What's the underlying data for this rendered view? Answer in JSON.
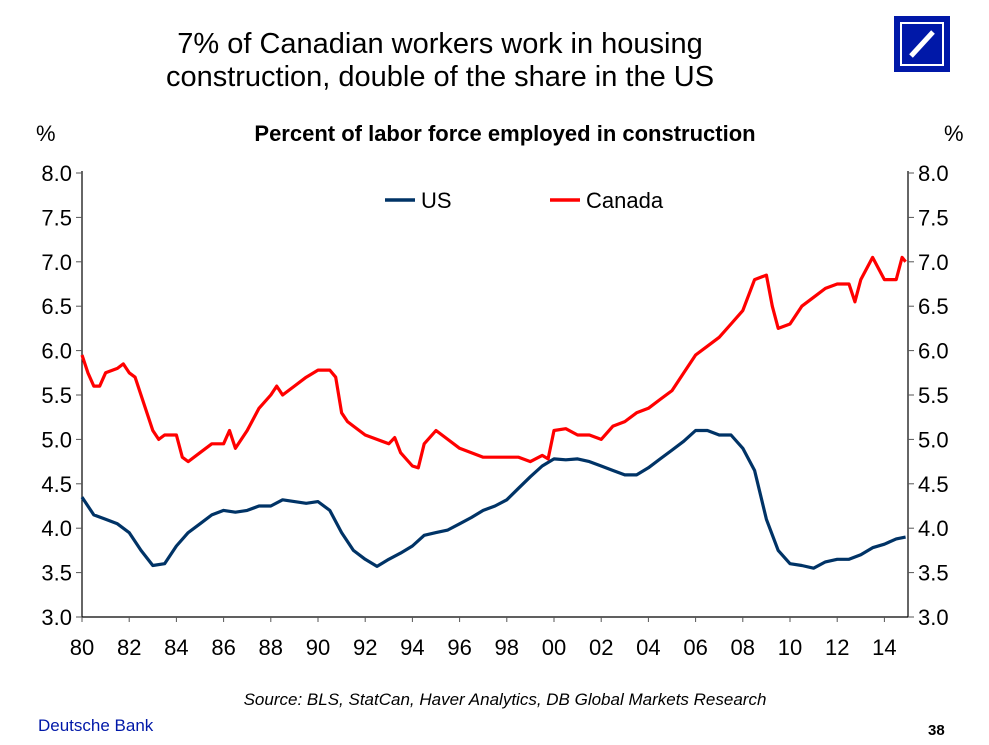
{
  "title_line1": "7% of Canadian workers work in housing",
  "title_line2": "construction, double of the share in the US",
  "footer": {
    "source": "Source: BLS, StatCan, Haver Analytics, DB Global Markets Research",
    "brand": "Deutsche Bank",
    "page": "38"
  },
  "colors": {
    "US": "#003366",
    "Canada": "#ff0000",
    "logo": "#0018a8"
  },
  "chart_data": {
    "type": "line",
    "title": "Percent of labor force employed in construction",
    "ylabel_left": "%",
    "ylabel_right": "%",
    "ylim": [
      3.0,
      8.0
    ],
    "yticks": [
      "3.0",
      "3.5",
      "4.0",
      "4.5",
      "5.0",
      "5.5",
      "6.0",
      "6.5",
      "7.0",
      "7.5",
      "8.0"
    ],
    "xlim": [
      1980,
      2015
    ],
    "xticks": [
      "80",
      "82",
      "84",
      "86",
      "88",
      "90",
      "92",
      "94",
      "96",
      "98",
      "00",
      "02",
      "04",
      "06",
      "08",
      "10",
      "12",
      "14"
    ],
    "legend": "top-center",
    "grid": false,
    "series": [
      {
        "name": "US",
        "x": [
          1980,
          1980.5,
          1981,
          1981.5,
          1982,
          1982.5,
          1983,
          1983.5,
          1984,
          1984.5,
          1985,
          1985.5,
          1986,
          1986.5,
          1987,
          1987.5,
          1988,
          1988.5,
          1989,
          1989.5,
          1990,
          1990.5,
          1991,
          1991.5,
          1992,
          1992.5,
          1993,
          1993.5,
          1994,
          1994.5,
          1995,
          1995.5,
          1996,
          1996.5,
          1997,
          1997.5,
          1998,
          1998.5,
          1999,
          1999.5,
          2000,
          2000.5,
          2001,
          2001.5,
          2002,
          2002.5,
          2003,
          2003.5,
          2004,
          2004.5,
          2005,
          2005.5,
          2006,
          2006.5,
          2007,
          2007.5,
          2008,
          2008.5,
          2009,
          2009.5,
          2010,
          2010.5,
          2011,
          2011.5,
          2012,
          2012.5,
          2013,
          2013.5,
          2014,
          2014.5,
          2014.9
        ],
        "values": [
          4.35,
          4.15,
          4.1,
          4.05,
          3.95,
          3.75,
          3.58,
          3.6,
          3.8,
          3.95,
          4.05,
          4.15,
          4.2,
          4.18,
          4.2,
          4.25,
          4.25,
          4.32,
          4.3,
          4.28,
          4.3,
          4.2,
          3.95,
          3.75,
          3.65,
          3.57,
          3.65,
          3.72,
          3.8,
          3.92,
          3.95,
          3.98,
          4.05,
          4.12,
          4.2,
          4.25,
          4.32,
          4.45,
          4.58,
          4.7,
          4.78,
          4.77,
          4.78,
          4.75,
          4.7,
          4.65,
          4.6,
          4.6,
          4.68,
          4.78,
          4.88,
          4.98,
          5.1,
          5.1,
          5.05,
          5.05,
          4.9,
          4.65,
          4.1,
          3.75,
          3.6,
          3.58,
          3.55,
          3.62,
          3.65,
          3.65,
          3.7,
          3.78,
          3.82,
          3.88,
          3.9
        ]
      },
      {
        "name": "Canada",
        "x": [
          1980,
          1980.25,
          1980.5,
          1980.75,
          1981,
          1981.5,
          1981.75,
          1982,
          1982.25,
          1982.5,
          1983,
          1983.25,
          1983.5,
          1984,
          1984.25,
          1984.5,
          1985,
          1985.5,
          1986,
          1986.25,
          1986.5,
          1987,
          1987.5,
          1988,
          1988.25,
          1988.5,
          1989,
          1989.5,
          1990,
          1990.5,
          1990.75,
          1991,
          1991.25,
          1991.5,
          1992,
          1992.5,
          1993,
          1993.25,
          1993.5,
          1994,
          1994.25,
          1994.5,
          1995,
          1995.5,
          1996,
          1996.5,
          1997,
          1997.5,
          1998,
          1998.5,
          1999,
          1999.5,
          1999.75,
          2000,
          2000.5,
          2001,
          2001.5,
          2002,
          2002.5,
          2003,
          2003.5,
          2004,
          2004.5,
          2005,
          2005.5,
          2006,
          2006.5,
          2007,
          2007.5,
          2008,
          2008.5,
          2009,
          2009.25,
          2009.5,
          2010,
          2010.5,
          2011,
          2011.5,
          2012,
          2012.5,
          2012.75,
          2013,
          2013.5,
          2014,
          2014.5,
          2014.75,
          2014.9
        ],
        "values": [
          5.95,
          5.75,
          5.6,
          5.6,
          5.75,
          5.8,
          5.85,
          5.75,
          5.7,
          5.5,
          5.1,
          5.0,
          5.05,
          5.05,
          4.8,
          4.75,
          4.85,
          4.95,
          4.95,
          5.1,
          4.9,
          5.1,
          5.35,
          5.5,
          5.6,
          5.5,
          5.6,
          5.7,
          5.78,
          5.78,
          5.7,
          5.3,
          5.2,
          5.15,
          5.05,
          5.0,
          4.95,
          5.02,
          4.85,
          4.7,
          4.68,
          4.95,
          5.1,
          5.0,
          4.9,
          4.85,
          4.8,
          4.8,
          4.8,
          4.8,
          4.75,
          4.82,
          4.78,
          5.1,
          5.12,
          5.05,
          5.05,
          5.0,
          5.15,
          5.2,
          5.3,
          5.35,
          5.45,
          5.55,
          5.75,
          5.95,
          6.05,
          6.15,
          6.3,
          6.45,
          6.8,
          6.85,
          6.5,
          6.25,
          6.3,
          6.5,
          6.6,
          6.7,
          6.75,
          6.75,
          6.55,
          6.8,
          7.05,
          6.8,
          6.8,
          7.05,
          7.0
        ]
      }
    ]
  }
}
